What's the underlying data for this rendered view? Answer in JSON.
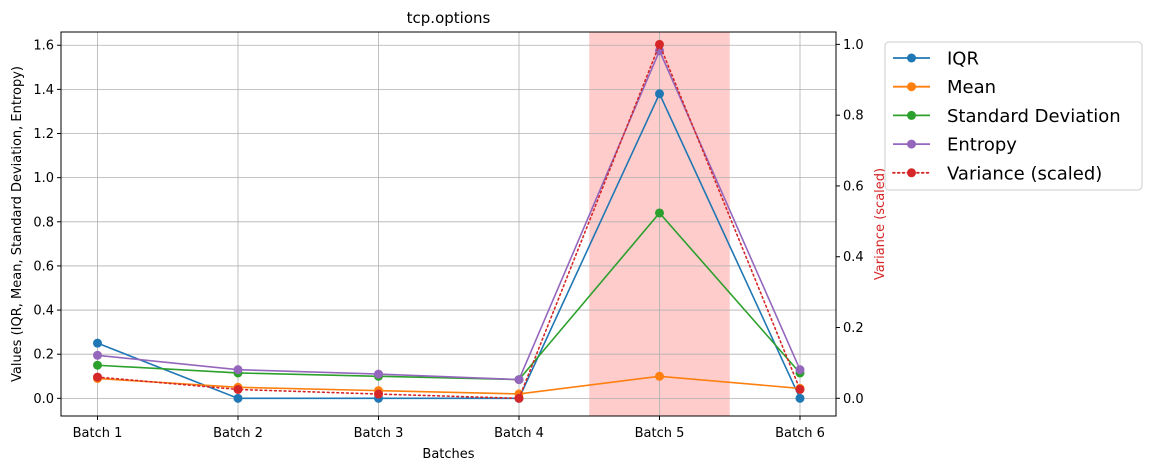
{
  "chart_data": {
    "type": "line",
    "title": "tcp.options",
    "xlabel": "Batches",
    "ylabel": "Values (IQR, Mean, Standard Deviation, Entropy)",
    "ylabel_right": "Variance (scaled)",
    "categories": [
      "Batch 1",
      "Batch 2",
      "Batch 3",
      "Batch 4",
      "Batch 5",
      "Batch 6"
    ],
    "ylim": [
      -0.08,
      1.66
    ],
    "ylim_right": [
      -0.05,
      1.035
    ],
    "yticks": [
      0.0,
      0.2,
      0.4,
      0.6,
      0.8,
      1.0,
      1.2,
      1.4,
      1.6
    ],
    "yticks_right": [
      0.0,
      0.2,
      0.4,
      0.6,
      0.8,
      1.0
    ],
    "grid": true,
    "legend_position": "outside-right",
    "highlight": {
      "category": "Batch 5",
      "color": "#ffcccc"
    },
    "series": [
      {
        "name": "IQR",
        "color": "#1f77b4",
        "axis": "left",
        "style": "solid",
        "values": [
          0.25,
          0.0,
          0.0,
          0.0,
          1.38,
          0.0
        ]
      },
      {
        "name": "Mean",
        "color": "#ff7f0e",
        "axis": "left",
        "style": "solid",
        "values": [
          0.09,
          0.05,
          0.035,
          0.02,
          0.1,
          0.045
        ]
      },
      {
        "name": "Standard Deviation",
        "color": "#2ca02c",
        "axis": "left",
        "style": "solid",
        "values": [
          0.15,
          0.115,
          0.1,
          0.085,
          0.84,
          0.115
        ]
      },
      {
        "name": "Entropy",
        "color": "#9467bd",
        "axis": "left",
        "style": "solid",
        "values": [
          0.195,
          0.13,
          0.11,
          0.085,
          1.575,
          0.13
        ]
      },
      {
        "name": "Variance (scaled)",
        "color": "#d62728",
        "axis": "right",
        "style": "dotted",
        "values": [
          0.06,
          0.025,
          0.012,
          0.0,
          1.0,
          0.025
        ]
      }
    ]
  }
}
